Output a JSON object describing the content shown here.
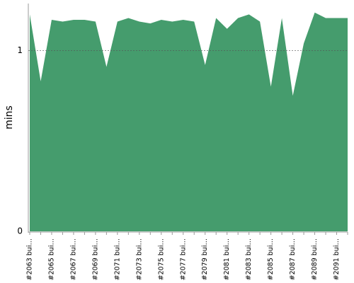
{
  "chart_data": {
    "type": "area",
    "y_label": "mins",
    "categories": [
      "#2063 bui…",
      null,
      "#2065 bui…",
      null,
      "#2067 bui…",
      null,
      "#2069 bui…",
      null,
      "#2071 bui…",
      null,
      "#2073 bui…",
      null,
      "#2075 bui…",
      null,
      "#2077 bui…",
      null,
      "#2079 bui…",
      null,
      "#2081 bui…",
      null,
      "#2083 bui…",
      null,
      "#2085 bui…",
      null,
      "#2087 bui…",
      null,
      "#2089 bui…",
      null,
      "#2091 bui…",
      null
    ],
    "values": [
      1.2,
      0.83,
      1.17,
      1.16,
      1.17,
      1.17,
      1.16,
      0.91,
      1.16,
      1.18,
      1.16,
      1.15,
      1.17,
      1.16,
      1.17,
      1.16,
      0.92,
      1.18,
      1.12,
      1.18,
      1.2,
      1.16,
      0.8,
      1.18,
      0.75,
      1.04,
      1.21,
      1.18,
      1.18,
      1.18
    ],
    "color": "#459c6d",
    "ylim": [
      0,
      1.26
    ],
    "yticks": [
      0,
      1
    ],
    "grid": true
  }
}
